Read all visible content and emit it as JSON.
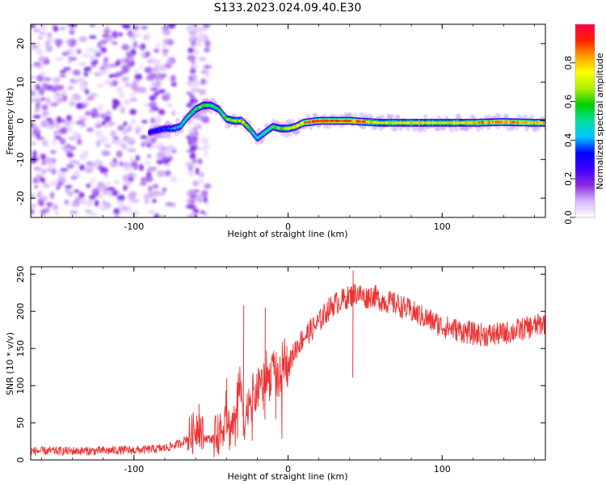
{
  "title": "S133.2023.024.09.40.E30",
  "chart_data": [
    {
      "type": "heatmap",
      "xlabel": "Height of straight line (km)",
      "ylabel": "Frequency (Hz)",
      "xlim": [
        -167,
        167
      ],
      "ylim": [
        -25,
        25
      ],
      "xticks": [
        -100,
        0,
        100
      ],
      "yticks": [
        -20,
        -10,
        0,
        10,
        20
      ],
      "colorbar": {
        "label": "Normalized spectral amplitude",
        "range": [
          0.0,
          1.0
        ],
        "ticks": [
          "0.0",
          "0.2",
          "0.4",
          "0.6",
          "0.8"
        ],
        "tick_values": [
          0.0,
          0.2,
          0.4,
          0.6,
          0.8
        ],
        "colormap": [
          "#ffffff",
          "#d8b8ff",
          "#8a2be2",
          "#3f00ff",
          "#0000ff",
          "#00c8ff",
          "#00e0a0",
          "#00d000",
          "#aaf000",
          "#ffff00",
          "#ffa000",
          "#ff2000",
          "#ff0050"
        ]
      },
      "noise_region_x": [
        -167,
        -80
      ],
      "ridge": {
        "x": [
          -90,
          -85,
          -80,
          -75,
          -70,
          -65,
          -60,
          -55,
          -50,
          -45,
          -40,
          -35,
          -30,
          -25,
          -20,
          -15,
          -10,
          -5,
          0,
          5,
          10,
          20,
          40,
          60,
          80,
          100,
          120,
          140,
          160,
          167
        ],
        "frequency_hz": [
          -3,
          -2.5,
          -2,
          -2,
          -1.5,
          1,
          3,
          4,
          4,
          3,
          0.5,
          0,
          0,
          -2,
          -4.5,
          -3,
          -1.5,
          -2,
          -2,
          -1.5,
          -0.5,
          0,
          0,
          -0.5,
          -0.5,
          -0.5,
          -0.5,
          -0.3,
          -0.5,
          -0.5
        ],
        "amplitude": [
          0.3,
          0.35,
          0.35,
          0.4,
          0.45,
          0.5,
          0.55,
          0.6,
          0.55,
          0.5,
          0.6,
          0.65,
          0.75,
          0.55,
          0.45,
          0.5,
          0.55,
          0.6,
          0.7,
          0.75,
          0.85,
          0.95,
          0.95,
          0.7,
          0.75,
          0.7,
          0.8,
          0.85,
          0.8,
          0.8
        ]
      }
    },
    {
      "type": "line",
      "xlabel": "Height of straight line (km)",
      "ylabel": "SNR (10 * v/v)",
      "xlim": [
        -167,
        167
      ],
      "ylim": [
        0,
        260
      ],
      "xticks": [
        -100,
        0,
        100
      ],
      "yticks": [
        0,
        50,
        100,
        150,
        200,
        250
      ],
      "series": [
        {
          "color": "#ee3333",
          "x": [
            -167,
            -150,
            -130,
            -110,
            -100,
            -90,
            -80,
            -70,
            -62,
            -58,
            -55,
            -50,
            -45,
            -42,
            -40,
            -38,
            -36,
            -34,
            -32,
            -30,
            -28,
            -26,
            -24,
            -22,
            -20,
            -18,
            -16,
            -14,
            -12,
            -10,
            -8,
            -6,
            -4,
            -2,
            0,
            5,
            10,
            15,
            20,
            25,
            30,
            35,
            40,
            45,
            50,
            55,
            60,
            70,
            80,
            90,
            100,
            110,
            120,
            130,
            140,
            150,
            160,
            167
          ],
          "y": [
            12,
            12,
            12,
            13,
            13,
            14,
            16,
            22,
            35,
            50,
            30,
            28,
            35,
            45,
            70,
            40,
            50,
            55,
            110,
            80,
            50,
            75,
            95,
            85,
            90,
            110,
            100,
            120,
            105,
            135,
            110,
            100,
            130,
            140,
            125,
            150,
            165,
            175,
            185,
            200,
            210,
            215,
            220,
            225,
            218,
            222,
            215,
            210,
            200,
            190,
            180,
            175,
            170,
            168,
            170,
            175,
            180,
            185
          ],
          "spikes": [
            {
              "x": -58,
              "y": 75
            },
            {
              "x": -40,
              "y": 110
            },
            {
              "x": -29,
              "y": 208
            },
            {
              "x": -15,
              "y": 205
            },
            {
              "x": -8,
              "y": 145
            },
            {
              "x": 42,
              "y": 255
            }
          ]
        }
      ]
    }
  ]
}
